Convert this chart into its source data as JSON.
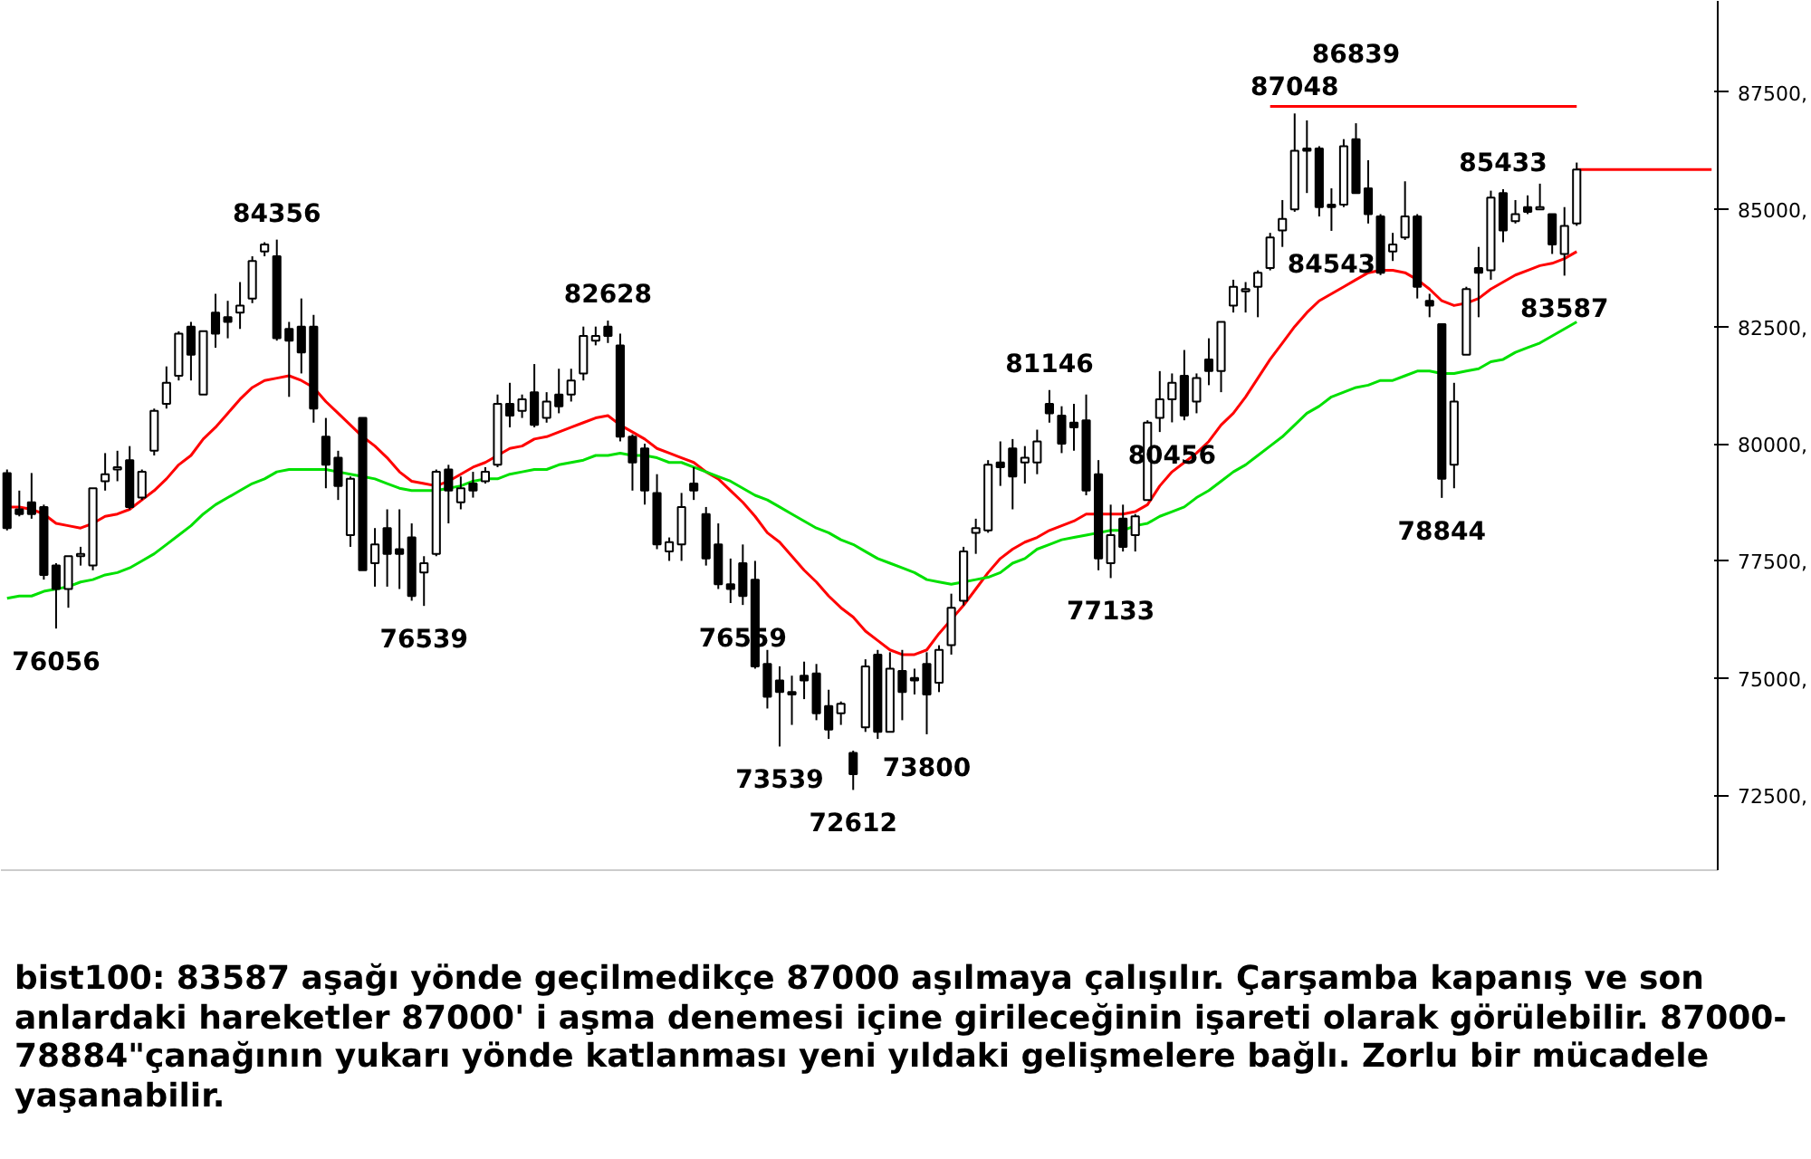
{
  "chart_data": {
    "type": "candlestick",
    "categories": [
      null,
      null,
      null,
      null,
      null,
      null,
      null,
      null,
      null,
      null,
      null,
      null,
      null,
      null,
      null,
      null,
      null,
      null,
      null,
      null,
      null,
      null,
      null,
      null,
      null,
      null,
      null,
      null,
      null,
      null,
      null,
      null,
      null,
      null,
      null,
      null,
      null,
      null,
      null,
      null,
      null,
      null,
      null,
      null,
      null,
      null,
      null,
      null,
      null,
      null,
      null,
      null,
      null,
      null,
      null,
      null,
      null,
      null,
      null,
      null,
      null,
      null,
      null,
      null,
      null,
      null,
      null,
      null,
      null,
      null,
      null,
      null,
      null,
      null,
      null,
      null,
      null,
      null,
      null,
      null,
      null,
      null,
      null,
      null,
      null,
      null,
      null,
      null,
      null,
      null,
      null,
      null,
      null,
      null,
      null,
      null,
      null,
      null,
      null,
      null,
      null,
      null,
      null,
      null,
      null,
      null,
      null,
      null,
      null,
      null,
      null,
      null,
      null,
      null,
      null,
      null,
      null,
      null,
      null,
      null,
      null,
      null,
      null,
      null,
      null,
      null,
      null,
      null,
      null,
      null,
      null,
      null,
      null,
      null,
      null,
      null,
      null,
      null,
      null,
      null
    ],
    "ohlc": [
      [
        79375,
        79450,
        78150,
        78200
      ],
      [
        78600,
        79000,
        78450,
        78500
      ],
      [
        78750,
        79375,
        78400,
        78500
      ],
      [
        78650,
        78700,
        77100,
        77200
      ],
      [
        77400,
        77450,
        76056,
        76900
      ],
      [
        76900,
        77600,
        76500,
        77600
      ],
      [
        77600,
        77800,
        77400,
        77650
      ],
      [
        77400,
        79050,
        77300,
        79050
      ],
      [
        79200,
        79800,
        79000,
        79350
      ],
      [
        79450,
        79850,
        79200,
        79500
      ],
      [
        79650,
        79950,
        78600,
        78650
      ],
      [
        78850,
        79450,
        78800,
        79400
      ],
      [
        79850,
        80750,
        79750,
        80700
      ],
      [
        80850,
        81650,
        80750,
        81300
      ],
      [
        81450,
        82400,
        81350,
        82350
      ],
      [
        82500,
        82600,
        81350,
        81900
      ],
      [
        81050,
        82400,
        81050,
        82400
      ],
      [
        82800,
        83200,
        82050,
        82350
      ],
      [
        82700,
        83050,
        82250,
        82600
      ],
      [
        82800,
        83450,
        82450,
        82950
      ],
      [
        83100,
        84000,
        83000,
        83900
      ],
      [
        84100,
        84300,
        84000,
        84250
      ],
      [
        84000,
        84356,
        82200,
        82250
      ],
      [
        82450,
        82600,
        81000,
        82200
      ],
      [
        82500,
        83100,
        81500,
        81950
      ],
      [
        82500,
        82750,
        80450,
        80750
      ],
      [
        80150,
        80550,
        79050,
        79550
      ],
      [
        79700,
        79850,
        78800,
        79100
      ],
      [
        78050,
        79300,
        77800,
        79250
      ],
      [
        80550,
        80550,
        77300,
        77300
      ],
      [
        77450,
        78200,
        76950,
        77850
      ],
      [
        78200,
        78600,
        76950,
        77650
      ],
      [
        77750,
        78600,
        76900,
        77650
      ],
      [
        78000,
        78300,
        76650,
        76750
      ],
      [
        77250,
        77600,
        76539,
        77450
      ],
      [
        77650,
        79450,
        77600,
        79400
      ],
      [
        79450,
        79550,
        78300,
        79000
      ],
      [
        78750,
        79300,
        78600,
        79050
      ],
      [
        79150,
        79400,
        78850,
        79000
      ],
      [
        79200,
        79500,
        79150,
        79400
      ],
      [
        79550,
        81050,
        79500,
        80850
      ],
      [
        80850,
        81300,
        80350,
        80600
      ],
      [
        80700,
        81050,
        80550,
        80950
      ],
      [
        81100,
        81700,
        80350,
        80400
      ],
      [
        80550,
        81100,
        80450,
        80900
      ],
      [
        81050,
        81600,
        80650,
        80800
      ],
      [
        81050,
        81600,
        80900,
        81350
      ],
      [
        81500,
        82500,
        81350,
        82300
      ],
      [
        82200,
        82500,
        82100,
        82300
      ],
      [
        82500,
        82628,
        82150,
        82300
      ],
      [
        82100,
        82350,
        80050,
        80150
      ],
      [
        80150,
        80200,
        79000,
        79600
      ],
      [
        79900,
        80000,
        78700,
        79000
      ],
      [
        78950,
        79350,
        77750,
        77850
      ],
      [
        77700,
        78000,
        77500,
        77900
      ],
      [
        77850,
        78950,
        77500,
        78650
      ],
      [
        79150,
        79500,
        78800,
        79000
      ],
      [
        78500,
        78650,
        77400,
        77550
      ],
      [
        77850,
        78300,
        76900,
        77000
      ],
      [
        77000,
        77550,
        76600,
        76900
      ],
      [
        77450,
        77850,
        76559,
        76750
      ],
      [
        77100,
        77500,
        75200,
        75250
      ],
      [
        75300,
        75600,
        74350,
        74600
      ],
      [
        74950,
        75250,
        73539,
        74700
      ],
      [
        74700,
        75050,
        74000,
        74650
      ],
      [
        75050,
        75350,
        74550,
        74950
      ],
      [
        75100,
        75300,
        74100,
        74250
      ],
      [
        74400,
        74750,
        73700,
        73900
      ],
      [
        74250,
        74500,
        74000,
        74450
      ],
      [
        73400,
        73450,
        72612,
        72950
      ],
      [
        73950,
        75400,
        73850,
        75250
      ],
      [
        75500,
        75600,
        73700,
        73850
      ],
      [
        73850,
        75550,
        73850,
        75200
      ],
      [
        75150,
        75600,
        74100,
        74700
      ],
      [
        75000,
        75200,
        74650,
        74950
      ],
      [
        75300,
        75550,
        73800,
        74650
      ],
      [
        74900,
        75700,
        74700,
        75600
      ],
      [
        75700,
        76800,
        75500,
        76500
      ],
      [
        76650,
        77800,
        76550,
        77700
      ],
      [
        78100,
        78400,
        77650,
        78200
      ],
      [
        78150,
        79650,
        78100,
        79550
      ],
      [
        79600,
        80050,
        79100,
        79500
      ],
      [
        79900,
        80100,
        78600,
        79300
      ],
      [
        79600,
        79950,
        79150,
        79700
      ],
      [
        79600,
        80300,
        79350,
        80050
      ],
      [
        80850,
        81146,
        80450,
        80650
      ],
      [
        80600,
        80800,
        79800,
        80000
      ],
      [
        80450,
        80850,
        79850,
        80350
      ],
      [
        80500,
        81050,
        78900,
        79000
      ],
      [
        79350,
        79650,
        77300,
        77550
      ],
      [
        77450,
        78700,
        77133,
        78050
      ],
      [
        78400,
        78700,
        77700,
        77800
      ],
      [
        78050,
        78500,
        77700,
        78450
      ],
      [
        78800,
        80500,
        78800,
        80450
      ],
      [
        80550,
        81550,
        80250,
        80950
      ],
      [
        80950,
        81500,
        80456,
        81300
      ],
      [
        81450,
        82000,
        80500,
        80600
      ],
      [
        80900,
        81500,
        80650,
        81400
      ],
      [
        81800,
        82250,
        81250,
        81550
      ],
      [
        81550,
        82600,
        81100,
        82600
      ],
      [
        82950,
        83500,
        82800,
        83350
      ],
      [
        83250,
        83450,
        82800,
        83300
      ],
      [
        83350,
        83700,
        82700,
        83650
      ],
      [
        83750,
        84500,
        83700,
        84400
      ],
      [
        84550,
        85200,
        84200,
        84800
      ],
      [
        85000,
        87048,
        84950,
        86250
      ],
      [
        86300,
        86900,
        85350,
        86250
      ],
      [
        86300,
        86350,
        84850,
        85050
      ],
      [
        85100,
        85450,
        84543,
        85050
      ],
      [
        85100,
        86500,
        85050,
        86350
      ],
      [
        86500,
        86839,
        85350,
        85350
      ],
      [
        85450,
        86050,
        84700,
        84900
      ],
      [
        84850,
        84900,
        83600,
        83650
      ],
      [
        84100,
        84500,
        83900,
        84250
      ],
      [
        84400,
        85600,
        84350,
        84850
      ],
      [
        84850,
        84900,
        83100,
        83350
      ],
      [
        83050,
        83200,
        82700,
        82950
      ],
      [
        82550,
        82550,
        78844,
        79250
      ],
      [
        79550,
        81300,
        79050,
        80900
      ],
      [
        81900,
        83350,
        81900,
        83300
      ],
      [
        83750,
        84200,
        82700,
        83650
      ],
      [
        83700,
        85400,
        83500,
        85250
      ],
      [
        85350,
        85433,
        84300,
        84550
      ],
      [
        84750,
        85200,
        84700,
        84900
      ],
      [
        85050,
        85300,
        84900,
        84950
      ],
      [
        85000,
        85550,
        85000,
        85050
      ],
      [
        84900,
        84900,
        84050,
        84250
      ],
      [
        84050,
        85050,
        83587,
        84650
      ],
      [
        84700,
        86000,
        84650,
        85850
      ],
      null,
      null,
      null,
      null,
      null,
      null,
      null,
      null,
      null,
      null,
      null
    ],
    "series": [
      {
        "type": "line",
        "color": "#ff0000",
        "values": [
          78650,
          78650,
          78600,
          78500,
          78300,
          78250,
          78200,
          78300,
          78450,
          78500,
          78600,
          78800,
          79000,
          79250,
          79550,
          79750,
          80100,
          80350,
          80650,
          80950,
          81200,
          81350,
          81400,
          81450,
          81350,
          81200,
          80900,
          80650,
          80400,
          80150,
          79950,
          79700,
          79400,
          79200,
          79150,
          79100,
          79200,
          79350,
          79500,
          79600,
          79750,
          79900,
          79950,
          80100,
          80150,
          80250,
          80350,
          80450,
          80550,
          80600,
          80400,
          80250,
          80100,
          79900,
          79800,
          79700,
          79600,
          79400,
          79250,
          79000,
          78750,
          78450,
          78100,
          77900,
          77600,
          77300,
          77050,
          76750,
          76500,
          76300,
          76000,
          75800,
          75600,
          75500,
          75500,
          75600,
          75950,
          76250,
          76550,
          76900,
          77250,
          77550,
          77750,
          77900,
          78000,
          78150,
          78250,
          78350,
          78500,
          78500,
          78500,
          78500,
          78550,
          78700,
          79100,
          79400,
          79600,
          79800,
          80050,
          80400,
          80650,
          81000,
          81400,
          81800,
          82150,
          82500,
          82800,
          83050,
          83200,
          83350,
          83500,
          83650,
          83700,
          83700,
          83650,
          83500,
          83300,
          83050,
          82950,
          83000,
          83100,
          83300,
          83450,
          83600,
          83700,
          83800,
          83850,
          83950,
          84100,
          null,
          null,
          null,
          null,
          null,
          null,
          null,
          null,
          null,
          null,
          null
        ]
      },
      {
        "type": "line",
        "color": "#00e000",
        "values": [
          76700,
          76750,
          76750,
          76850,
          76900,
          76950,
          77050,
          77100,
          77200,
          77250,
          77350,
          77500,
          77650,
          77850,
          78050,
          78250,
          78500,
          78700,
          78850,
          79000,
          79150,
          79250,
          79400,
          79450,
          79450,
          79450,
          79450,
          79400,
          79350,
          79300,
          79250,
          79150,
          79050,
          79000,
          79000,
          79000,
          79050,
          79100,
          79200,
          79250,
          79250,
          79350,
          79400,
          79450,
          79450,
          79550,
          79600,
          79650,
          79750,
          79750,
          79800,
          79750,
          79750,
          79700,
          79600,
          79600,
          79500,
          79400,
          79300,
          79200,
          79050,
          78900,
          78800,
          78650,
          78500,
          78350,
          78200,
          78100,
          77950,
          77850,
          77700,
          77550,
          77450,
          77350,
          77250,
          77100,
          77050,
          77000,
          77050,
          77100,
          77150,
          77250,
          77450,
          77550,
          77750,
          77850,
          77950,
          78000,
          78050,
          78100,
          78150,
          78150,
          78250,
          78300,
          78450,
          78550,
          78650,
          78850,
          79000,
          79200,
          79400,
          79550,
          79750,
          79950,
          80150,
          80400,
          80650,
          80800,
          81000,
          81100,
          81200,
          81250,
          81350,
          81350,
          81450,
          81550,
          81550,
          81500,
          81500,
          81550,
          81600,
          81750,
          81800,
          81950,
          82050,
          82150,
          82300,
          82450,
          82600,
          null,
          null,
          null,
          null,
          null,
          null,
          null,
          null,
          null,
          null,
          null
        ]
      },
      {
        "type": "line",
        "color": "#ff0000",
        "values": [
          null,
          null,
          null,
          null,
          null,
          null,
          null,
          null,
          null,
          null,
          null,
          null,
          null,
          null,
          null,
          null,
          null,
          null,
          null,
          null,
          null,
          null,
          null,
          null,
          null,
          null,
          null,
          null,
          null,
          null,
          null,
          null,
          null,
          null,
          null,
          null,
          null,
          null,
          null,
          null,
          null,
          null,
          null,
          null,
          null,
          null,
          null,
          null,
          null,
          null,
          null,
          null,
          null,
          null,
          null,
          null,
          null,
          null,
          null,
          null,
          null,
          null,
          null,
          null,
          null,
          null,
          null,
          null,
          null,
          null,
          null,
          null,
          null,
          null,
          null,
          null,
          null,
          null,
          null,
          null,
          null,
          null,
          null,
          null,
          null,
          null,
          null,
          null,
          null,
          null,
          null,
          null,
          null,
          null,
          null,
          null,
          null,
          null,
          null,
          null,
          null,
          null,
          null,
          87200,
          87200,
          87200,
          87200,
          87200,
          87200,
          87200,
          87200,
          87200,
          87200,
          87200,
          87200,
          87200,
          87200,
          87200,
          87200,
          87200,
          87200,
          87200,
          87200,
          87200,
          87200,
          87200,
          87200,
          87200,
          87200,
          null,
          null,
          null,
          null,
          null,
          null,
          null,
          null,
          null,
          null,
          null
        ]
      },
      {
        "type": "line",
        "color": "#ff0000",
        "values": [
          null,
          null,
          null,
          null,
          null,
          null,
          null,
          null,
          null,
          null,
          null,
          null,
          null,
          null,
          null,
          null,
          null,
          null,
          null,
          null,
          null,
          null,
          null,
          null,
          null,
          null,
          null,
          null,
          null,
          null,
          null,
          null,
          null,
          null,
          null,
          null,
          null,
          null,
          null,
          null,
          null,
          null,
          null,
          null,
          null,
          null,
          null,
          null,
          null,
          null,
          null,
          null,
          null,
          null,
          null,
          null,
          null,
          null,
          null,
          null,
          null,
          null,
          null,
          null,
          null,
          null,
          null,
          null,
          null,
          null,
          null,
          null,
          null,
          null,
          null,
          null,
          null,
          null,
          null,
          null,
          null,
          null,
          null,
          null,
          null,
          null,
          null,
          null,
          null,
          null,
          null,
          null,
          null,
          null,
          null,
          null,
          null,
          null,
          null,
          null,
          null,
          null,
          null,
          null,
          null,
          null,
          null,
          null,
          null,
          null,
          null,
          null,
          null,
          null,
          null,
          null,
          null,
          null,
          null,
          null,
          null,
          null,
          null,
          null,
          null,
          null,
          null,
          null,
          85850,
          85850,
          85850,
          85850,
          85850,
          85850,
          85850,
          85850,
          85850,
          85850,
          85850,
          85850
        ]
      }
    ],
    "ylim": [
      70900,
      89450
    ],
    "yticks": [
      {
        "value": 72500,
        "label": "72500,"
      },
      {
        "value": 75000,
        "label": "75000,"
      },
      {
        "value": 77500,
        "label": "77500,"
      },
      {
        "value": 80000,
        "label": "80000,"
      },
      {
        "value": 82500,
        "label": "82500,"
      },
      {
        "value": 85000,
        "label": "85000,"
      },
      {
        "value": 87500,
        "label": "87500,"
      }
    ],
    "tick_labels": "y",
    "grid": false,
    "annotations": [
      {
        "text": "84356",
        "y": 84356
      },
      {
        "text": "76056",
        "y": 76056
      },
      {
        "text": "76539",
        "y": 76539
      },
      {
        "text": "82628",
        "y": 82628
      },
      {
        "text": "76559",
        "y": 76559
      },
      {
        "text": "73539",
        "y": 73539
      },
      {
        "text": "72612",
        "y": 72612
      },
      {
        "text": "73800",
        "y": 73800
      },
      {
        "text": "81146",
        "y": 81146
      },
      {
        "text": "77133",
        "y": 77133
      },
      {
        "text": "80456",
        "y": 80456
      },
      {
        "text": "87048",
        "y": 87048
      },
      {
        "text": "86839",
        "y": 86839
      },
      {
        "text": "84543",
        "y": 84543
      },
      {
        "text": "85433",
        "y": 85433
      },
      {
        "text": "83587",
        "y": 83587
      },
      {
        "text": "78844",
        "y": 78844
      },
      "bist100: 83587 aşağı yönde geçilmedikçe 87000 aşılmaya çalışılır. Çarşamba kapanış ve son anlardaki hareketler 87000' i aşma denemesi içine girileceğinin işareti olarak görülebilir. 87000-78884\"çanağının yukarı yönde katlanması yeni yıldaki gelişmelere bağlı. Zorlu bir mücadele yaşanabilir."
    ]
  }
}
